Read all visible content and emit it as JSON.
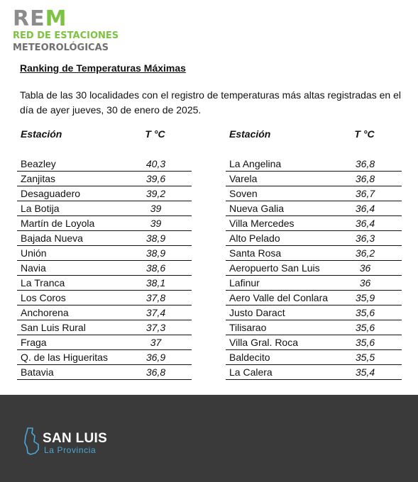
{
  "logo": {
    "rem_gray": "RE",
    "rem_green": "M",
    "line1": "RED DE ESTACIONES",
    "line2": "METEOROLÓGICAS"
  },
  "heading": "Ranking de Temperaturas Máximas",
  "description": "Tabla de las 30 localidades con el registro de temperaturas más altas registradas en el día de ayer jueves, 30 de enero de 2025.",
  "columns": {
    "station": "Estación",
    "temp": "T °C"
  },
  "left_rows": [
    {
      "station": "Beazley",
      "temp": "40,3"
    },
    {
      "station": "Zanjitas",
      "temp": "39,6"
    },
    {
      "station": "Desaguadero",
      "temp": "39,2"
    },
    {
      "station": "La Botija",
      "temp": "39"
    },
    {
      "station": "Martín de Loyola",
      "temp": "39"
    },
    {
      "station": "Bajada Nueva",
      "temp": "38,9"
    },
    {
      "station": "Unión",
      "temp": "38,9"
    },
    {
      "station": "Navia",
      "temp": "38,6"
    },
    {
      "station": "La Tranca",
      "temp": "38,1"
    },
    {
      "station": "Los Coros",
      "temp": "37,8"
    },
    {
      "station": "Anchorena",
      "temp": "37,4"
    },
    {
      "station": "San Luis Rural",
      "temp": "37,3"
    },
    {
      "station": "Fraga",
      "temp": "37"
    },
    {
      "station": "Q. de las Higueritas",
      "temp": "36,9"
    },
    {
      "station": "Batavia",
      "temp": "36,8"
    }
  ],
  "right_rows": [
    {
      "station": "La Angelina",
      "temp": "36,8"
    },
    {
      "station": "Varela",
      "temp": "36,8"
    },
    {
      "station": "Soven",
      "temp": "36,7"
    },
    {
      "station": "Nueva Galia",
      "temp": "36,4"
    },
    {
      "station": "Villa Mercedes",
      "temp": "36,4"
    },
    {
      "station": "Alto Pelado",
      "temp": "36,3"
    },
    {
      "station": "Santa Rosa",
      "temp": "36,2"
    },
    {
      "station": "Aeropuerto San Luis",
      "temp": "36"
    },
    {
      "station": "Lafinur",
      "temp": "36"
    },
    {
      "station": "Aero Valle del Conlara",
      "temp": "35,9"
    },
    {
      "station": "Justo Daract",
      "temp": "35,6"
    },
    {
      "station": "Tilisarao",
      "temp": "35,6"
    },
    {
      "station": "Villa Gral. Roca",
      "temp": "35,6"
    },
    {
      "station": "Baldecito",
      "temp": "35,5"
    },
    {
      "station": "La Calera",
      "temp": "35,4"
    }
  ],
  "footer": {
    "brand": "SAN LUIS",
    "tagline": "La Provincia",
    "background": "#3a3a3a",
    "accent": "#4aa8d8",
    "icon": "san-luis-map-icon"
  }
}
